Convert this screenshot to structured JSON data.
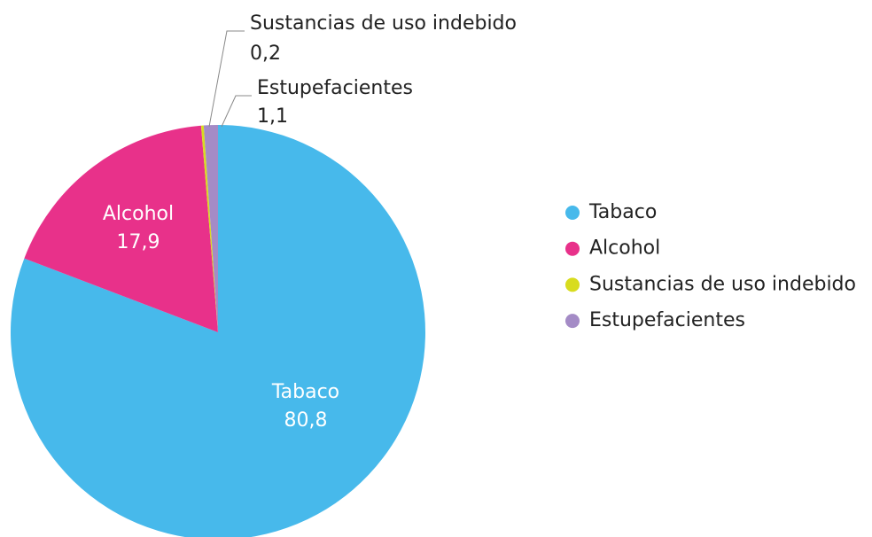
{
  "chart_data": {
    "type": "pie",
    "categories": [
      "Tabaco",
      "Alcohol",
      "Sustancias de uso indebido",
      "Estupefacientes"
    ],
    "values": [
      80.8,
      17.9,
      0.2,
      1.1
    ],
    "value_labels": [
      "80,8",
      "17,9",
      "0,2",
      "1,1"
    ],
    "colors": [
      "#47b9eb",
      "#e8318a",
      "#d8dc1e",
      "#a48bc6"
    ]
  }
}
